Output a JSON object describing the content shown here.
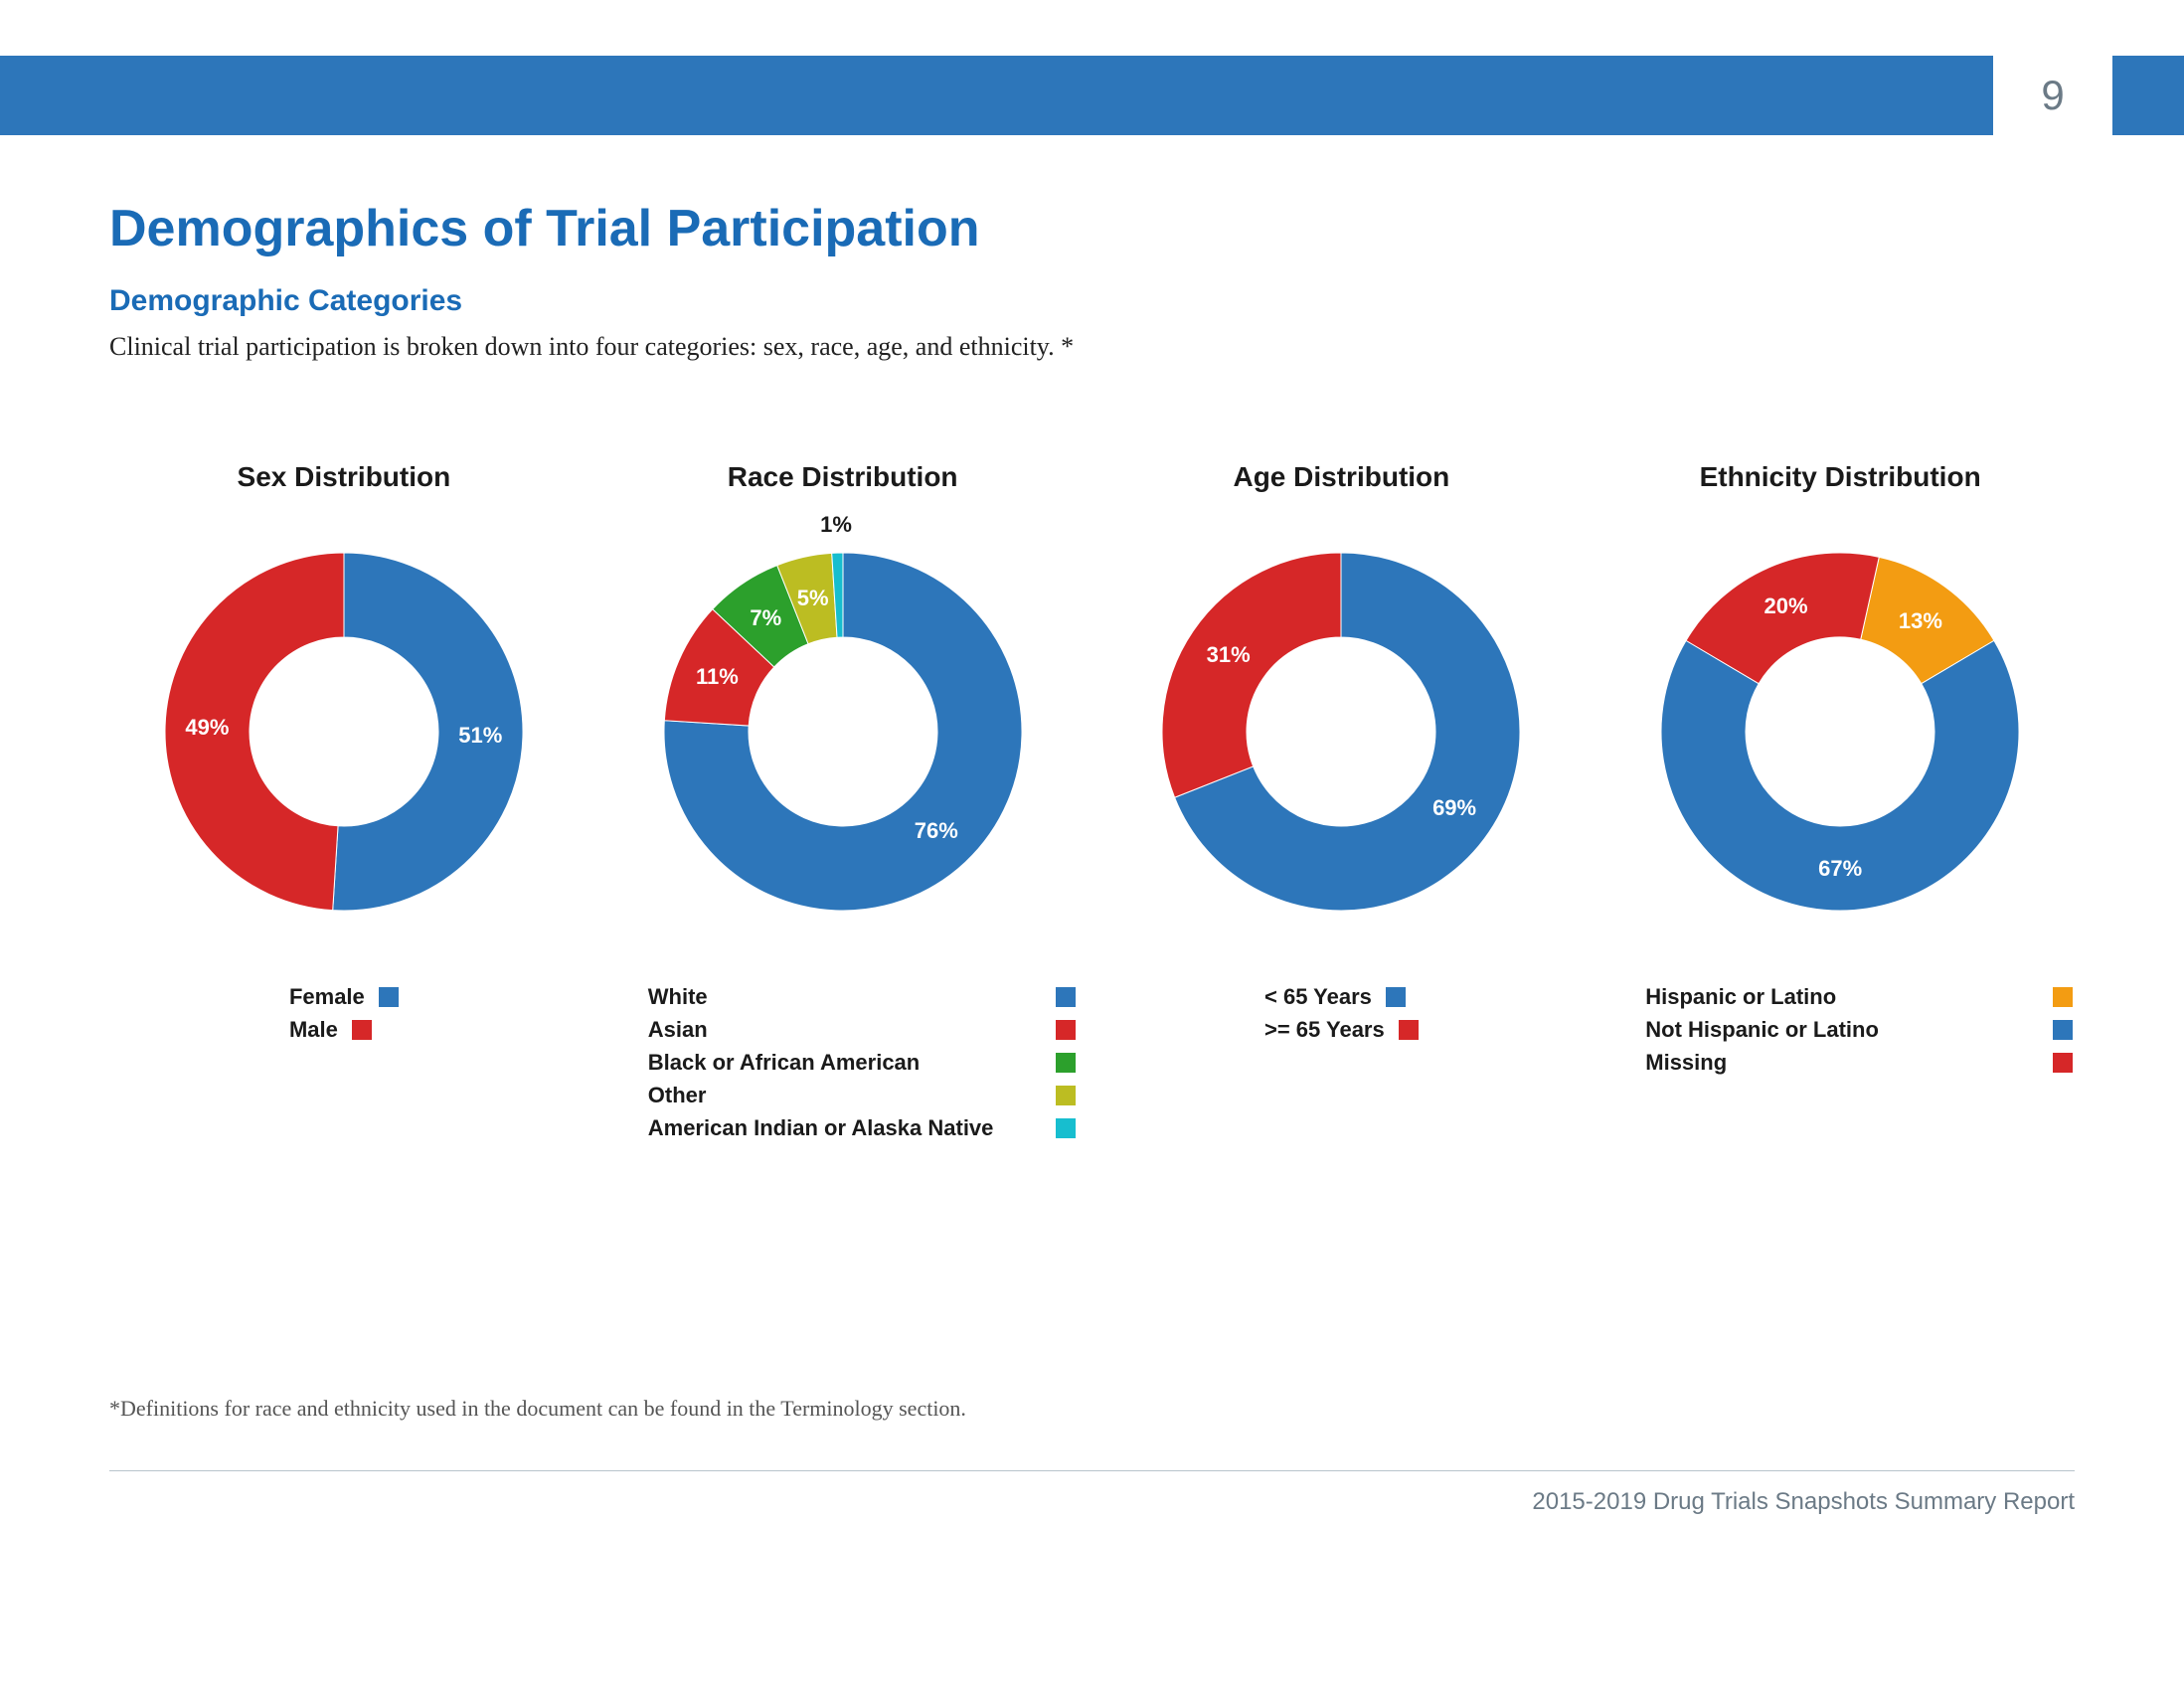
{
  "page": {
    "number": "9",
    "header_bar_color": "#2d76ba",
    "title": "Demographics of Trial Participation",
    "title_color": "#1a6bb6",
    "subtitle": "Demographic Categories",
    "subtitle_color": "#1a6bb6",
    "intro": "Clinical trial participation is broken down into four categories: sex, race, age, and ethnicity. *",
    "footnote": "*Definitions for race and ethnicity used in the document can be found in the Terminology section.",
    "footer": "2015-2019 Drug Trials Snapshots Summary Report"
  },
  "donut": {
    "outer_radius": 180,
    "inner_radius": 95,
    "size": 360
  },
  "charts": [
    {
      "title": "Sex Distribution",
      "type": "donut",
      "start_angle": 0,
      "legend_style": "center-swatch-after",
      "slices": [
        {
          "label": "Female",
          "value": 51,
          "color": "#2d76ba",
          "pct_label": "51%"
        },
        {
          "label": "Male",
          "value": 49,
          "color": "#d62728",
          "pct_label": "49%"
        }
      ]
    },
    {
      "title": "Race Distribution",
      "type": "donut",
      "start_angle": 0,
      "legend_style": "wide-swatch-after",
      "slices": [
        {
          "label": "White",
          "value": 76,
          "color": "#2d76ba",
          "pct_label": "76%"
        },
        {
          "label": "Asian",
          "value": 11,
          "color": "#d62728",
          "pct_label": "11%"
        },
        {
          "label": "Black or African American",
          "value": 7,
          "color": "#2ca02c",
          "pct_label": "7%"
        },
        {
          "label": "Other",
          "value": 5,
          "color": "#bcbd22",
          "pct_label": "5%"
        },
        {
          "label": "American Indian or Alaska Native",
          "value": 1,
          "color": "#17becf",
          "pct_label": "1%",
          "outside": true
        }
      ]
    },
    {
      "title": "Age Distribution",
      "type": "donut",
      "start_angle": 0,
      "legend_style": "center-swatch-after",
      "slices": [
        {
          "label": "< 65 Years",
          "value": 69,
          "color": "#2d76ba",
          "pct_label": "69%"
        },
        {
          "label": ">= 65 Years",
          "value": 31,
          "color": "#d62728",
          "pct_label": "31%"
        }
      ]
    },
    {
      "title": "Ethnicity Distribution",
      "type": "donut",
      "start_angle": 0,
      "legend_style": "wide-swatch-after",
      "slices": [
        {
          "label": "Hispanic or Latino",
          "value": 13,
          "color": "#f39c12",
          "pct_label": "13%"
        },
        {
          "label": "Not Hispanic or Latino",
          "value": 67,
          "color": "#2d76ba",
          "pct_label": "67%"
        },
        {
          "label": "Missing",
          "value": 20,
          "color": "#d62728",
          "pct_label": "20%"
        }
      ],
      "rotate_to_largest_bottom": true
    }
  ]
}
